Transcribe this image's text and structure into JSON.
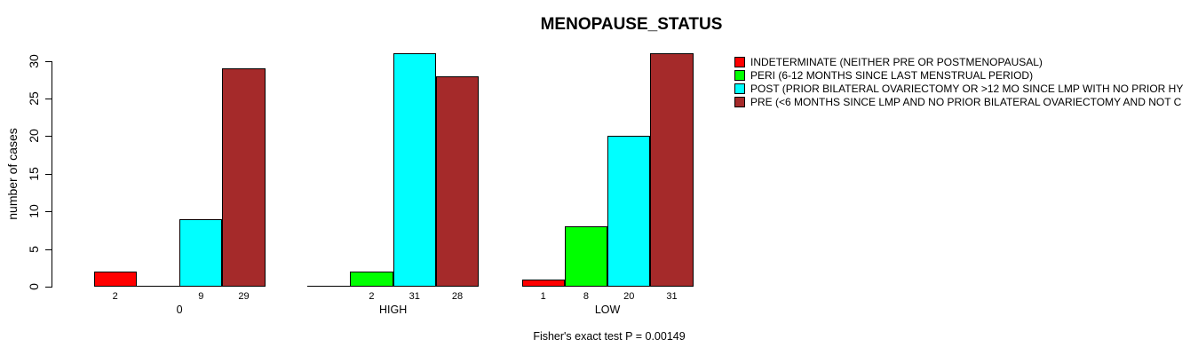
{
  "chart_data": {
    "type": "bar",
    "title": "MENOPAUSE_STATUS",
    "xlabel": "",
    "ylabel": "number of cases",
    "annotation": "Fisher's exact test P = 0.00149",
    "categories": [
      "0",
      "HIGH",
      "LOW"
    ],
    "series": [
      {
        "name": "INDETERMINATE (NEITHER PRE OR POSTMENOPAUSAL)",
        "color": "#ff0000",
        "values": [
          2,
          0,
          1
        ]
      },
      {
        "name": "PERI (6-12 MONTHS SINCE LAST MENSTRUAL PERIOD)",
        "color": "#00ff00",
        "values": [
          0,
          2,
          8
        ]
      },
      {
        "name": "POST (PRIOR BILATERAL OVARIECTOMY OR >12 MO SINCE LMP WITH NO PRIOR HY",
        "color": "#00ffff",
        "values": [
          9,
          31,
          20
        ]
      },
      {
        "name": "PRE (<6 MONTHS SINCE LMP AND NO PRIOR BILATERAL OVARIECTOMY AND NOT C",
        "color": "#a52a2a",
        "values": [
          29,
          28,
          31
        ]
      }
    ],
    "yticks": [
      0,
      5,
      10,
      15,
      20,
      25,
      30
    ],
    "ylim": [
      0,
      31
    ],
    "grid": false,
    "legend_position": "topright",
    "bar_value_labels": "values shown under each nonzero bar",
    "axis_color": "#000000",
    "bar_border_color": "#000000"
  }
}
